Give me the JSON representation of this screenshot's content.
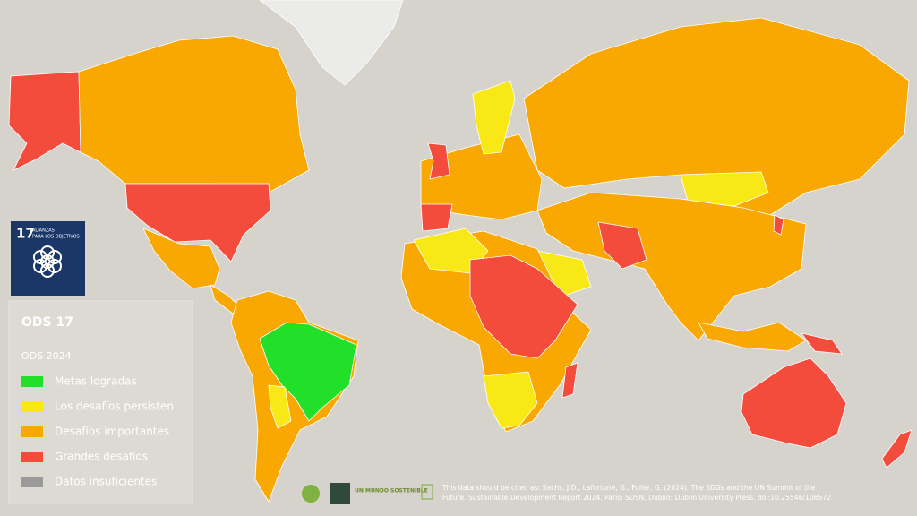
{
  "logo": {
    "number": "17",
    "lines": [
      "ALIANZAS",
      "PARA LOS OBJETIVOS"
    ]
  },
  "legend": {
    "title": "ODS 17",
    "subtitle": "ODS 2024",
    "items": [
      {
        "label": "Metas logradas",
        "color": "#22e02a"
      },
      {
        "label": "Los desafíos persisten",
        "color": "#f7e816"
      },
      {
        "label": "Desafíos importantes",
        "color": "#f8a800"
      },
      {
        "label": "Grandes desafíos",
        "color": "#f44c3c"
      },
      {
        "label": "Datos insuficientes",
        "color": "#9a9a9a"
      }
    ]
  },
  "citation": [
    "This data should be cited as:  Sachs, J.D., Lafortune, G., Fuller, G. (2024). The SDGs and the UN Summit of the",
    "Future. Sustainable Development Report 2024. Paris: SDSN, Dublin: Dublin University Press. doi:10.25546/108572"
  ],
  "footer_logo": "UN MUNDO SOSTENIBLE"
}
